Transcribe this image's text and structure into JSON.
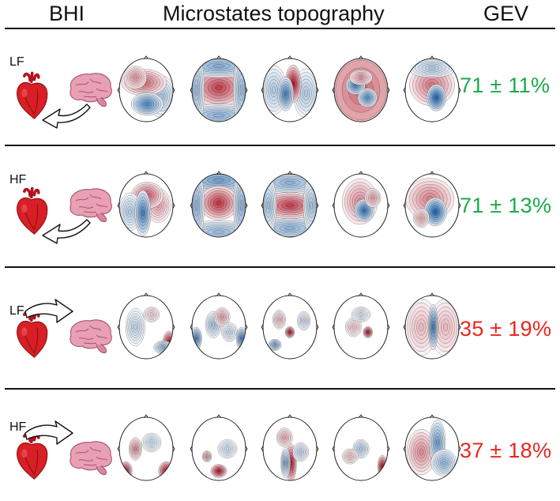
{
  "header": {
    "bhi": "BHI",
    "topography": "Microstates topography",
    "gev": "GEV"
  },
  "colors": {
    "good": "#1aab4b",
    "bad": "#e8271e",
    "pos": "#b2182b",
    "neg": "#2166ac"
  },
  "rows": [
    {
      "band": "LF",
      "direction": "brain-to-heart",
      "gev": "71 ± 11%",
      "gev_color": "good",
      "maps": [
        [
          [
            0.46,
            0.38,
            0.28,
            0.14,
            0.6
          ],
          [
            0.52,
            0.72,
            0.2,
            0.12,
            -0.75
          ],
          [
            0.3,
            0.3,
            0.14,
            0.12,
            0.4
          ],
          [
            0.78,
            0.6,
            0.18,
            0.22,
            -0.35
          ]
        ],
        [
          [
            0.5,
            0.46,
            0.32,
            0.2,
            0.8
          ],
          [
            0.5,
            0.12,
            0.5,
            0.12,
            -0.5
          ],
          [
            0.5,
            0.9,
            0.5,
            0.12,
            -0.45
          ],
          [
            0.08,
            0.5,
            0.1,
            0.4,
            -0.4
          ],
          [
            0.92,
            0.5,
            0.1,
            0.4,
            -0.4
          ]
        ],
        [
          [
            0.56,
            0.4,
            0.1,
            0.2,
            1.0
          ],
          [
            0.42,
            0.56,
            0.1,
            0.18,
            -0.8
          ],
          [
            0.2,
            0.5,
            0.16,
            0.26,
            -0.3
          ],
          [
            0.8,
            0.55,
            0.16,
            0.26,
            -0.3
          ]
        ],
        [
          [
            0.5,
            0.5,
            0.55,
            0.55,
            0.6
          ],
          [
            0.4,
            0.42,
            0.12,
            0.1,
            -0.8
          ],
          [
            0.62,
            0.62,
            0.12,
            0.1,
            -0.7
          ],
          [
            0.5,
            0.3,
            0.14,
            0.08,
            0.4
          ]
        ],
        [
          [
            0.5,
            0.42,
            0.28,
            0.22,
            0.55
          ],
          [
            0.58,
            0.62,
            0.12,
            0.14,
            -1.0
          ],
          [
            0.5,
            0.15,
            0.3,
            0.1,
            -0.3
          ]
        ]
      ]
    },
    {
      "band": "HF",
      "direction": "brain-to-heart",
      "gev": "71 ± 13%",
      "gev_color": "good",
      "maps": [
        [
          [
            0.52,
            0.34,
            0.2,
            0.14,
            0.65
          ],
          [
            0.44,
            0.62,
            0.1,
            0.24,
            -0.8
          ],
          [
            0.72,
            0.5,
            0.16,
            0.18,
            0.35
          ],
          [
            0.2,
            0.6,
            0.14,
            0.2,
            -0.3
          ]
        ],
        [
          [
            0.5,
            0.46,
            0.24,
            0.18,
            0.85
          ],
          [
            0.5,
            0.1,
            0.5,
            0.14,
            -0.6
          ],
          [
            0.5,
            0.92,
            0.5,
            0.12,
            -0.4
          ],
          [
            0.08,
            0.5,
            0.1,
            0.4,
            -0.45
          ],
          [
            0.92,
            0.5,
            0.1,
            0.4,
            -0.45
          ]
        ],
        [
          [
            0.5,
            0.5,
            0.36,
            0.14,
            0.8
          ],
          [
            0.5,
            0.14,
            0.45,
            0.12,
            -0.45
          ],
          [
            0.5,
            0.86,
            0.45,
            0.12,
            -0.45
          ],
          [
            0.1,
            0.5,
            0.1,
            0.3,
            -0.35
          ],
          [
            0.9,
            0.5,
            0.1,
            0.3,
            -0.35
          ]
        ],
        [
          [
            0.48,
            0.44,
            0.22,
            0.24,
            0.45
          ],
          [
            0.56,
            0.58,
            0.12,
            0.12,
            -0.9
          ],
          [
            0.72,
            0.38,
            0.1,
            0.1,
            0.35
          ]
        ],
        [
          [
            0.46,
            0.4,
            0.3,
            0.22,
            0.5
          ],
          [
            0.56,
            0.6,
            0.14,
            0.15,
            -1.0
          ],
          [
            0.3,
            0.7,
            0.1,
            0.1,
            0.3
          ]
        ]
      ]
    },
    {
      "band": "LF",
      "direction": "heart-to-brain",
      "gev": "35 ± 19%",
      "gev_color": "bad",
      "maps": [
        [
          [
            0.93,
            0.74,
            0.08,
            0.12,
            1.0
          ],
          [
            0.3,
            0.5,
            0.12,
            0.2,
            -0.25
          ],
          [
            0.82,
            0.82,
            0.12,
            0.07,
            -0.45
          ],
          [
            0.6,
            0.3,
            0.1,
            0.08,
            0.15
          ]
        ],
        [
          [
            0.08,
            0.68,
            0.07,
            0.12,
            -0.8
          ],
          [
            0.93,
            0.68,
            0.07,
            0.12,
            -0.8
          ],
          [
            0.4,
            0.46,
            0.1,
            0.14,
            -0.35
          ],
          [
            0.56,
            0.34,
            0.1,
            0.1,
            0.35
          ],
          [
            0.7,
            0.58,
            0.1,
            0.1,
            -0.2
          ]
        ],
        [
          [
            0.5,
            0.58,
            0.06,
            0.06,
            1.0
          ],
          [
            0.22,
            0.78,
            0.08,
            0.06,
            -0.55
          ],
          [
            0.3,
            0.38,
            0.08,
            0.1,
            0.25
          ],
          [
            0.76,
            0.4,
            0.08,
            0.1,
            -0.2
          ]
        ],
        [
          [
            0.63,
            0.58,
            0.06,
            0.06,
            1.0
          ],
          [
            0.36,
            0.5,
            0.1,
            0.1,
            0.2
          ],
          [
            0.5,
            0.3,
            0.12,
            0.08,
            -0.15
          ]
        ],
        [
          [
            0.52,
            0.5,
            0.06,
            0.24,
            -0.8
          ],
          [
            0.3,
            0.5,
            0.2,
            0.3,
            0.25
          ],
          [
            0.75,
            0.5,
            0.2,
            0.3,
            0.25
          ]
        ]
      ]
    },
    {
      "band": "HF",
      "direction": "heart-to-brain",
      "gev": "37 ± 18%",
      "gev_color": "bad",
      "maps": [
        [
          [
            0.12,
            0.85,
            0.08,
            0.1,
            1.0
          ],
          [
            0.88,
            0.85,
            0.1,
            0.1,
            1.0
          ],
          [
            0.3,
            0.5,
            0.08,
            0.12,
            0.45
          ],
          [
            0.6,
            0.4,
            0.12,
            0.1,
            -0.2
          ]
        ],
        [
          [
            0.5,
            0.85,
            0.1,
            0.07,
            1.0
          ],
          [
            0.28,
            0.62,
            0.06,
            0.06,
            0.35
          ],
          [
            0.66,
            0.5,
            0.12,
            0.1,
            -0.2
          ]
        ],
        [
          [
            0.52,
            0.72,
            0.07,
            0.2,
            1.0
          ],
          [
            0.42,
            0.72,
            0.06,
            0.16,
            -0.5
          ],
          [
            0.4,
            0.32,
            0.1,
            0.1,
            0.3
          ],
          [
            0.7,
            0.55,
            0.1,
            0.1,
            -0.25
          ]
        ],
        [
          [
            0.9,
            0.78,
            0.06,
            0.12,
            1.0
          ],
          [
            0.5,
            0.5,
            0.1,
            0.1,
            -0.3
          ],
          [
            0.3,
            0.62,
            0.1,
            0.08,
            0.2
          ]
        ],
        [
          [
            0.6,
            0.4,
            0.1,
            0.24,
            -0.6
          ],
          [
            0.3,
            0.55,
            0.18,
            0.24,
            0.45
          ],
          [
            0.72,
            0.72,
            0.16,
            0.14,
            -0.45
          ]
        ]
      ]
    }
  ]
}
